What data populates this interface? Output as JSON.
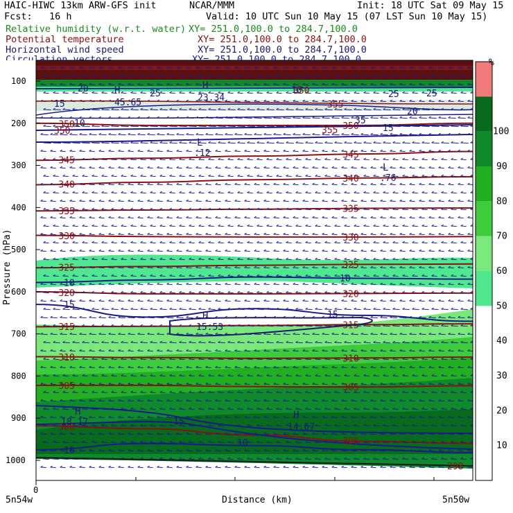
{
  "header": {
    "model": "HAIC-HIWC 13km ARW-GFS init",
    "org": "NCAR/MMM",
    "init": "Init: 18 UTC Sat 09 May 15",
    "fcst": "Fcst:   16 h",
    "valid": "Valid: 10 UTC Sun 10 May 15 (07 LST Sun 10 May 15)"
  },
  "fields": [
    {
      "name": "Relative humidity (w.r.t. water)",
      "xy": "XY= 251.0,100.0 to 284.7,100.0",
      "color": "#1a8a1a"
    },
    {
      "name": "Potential temperature",
      "xy": "XY= 251.0,100.0 to 284.7,100.0",
      "color": "#8b1010"
    },
    {
      "name": "Horizontal wind speed",
      "xy": "XY= 251.0,100.0 to 284.7,100.0",
      "color": "#1a1a6e"
    },
    {
      "name": "Circulation vectors",
      "xy": "XY= 251.0,100.0 to 284.7,100.0",
      "color": "#1a1a8e"
    }
  ],
  "chart_data": {
    "type": "cross-section",
    "ylabel": "Pressure (hPa)",
    "xlabel": "Distance (km)",
    "y_ticks": [
      100,
      200,
      300,
      400,
      500,
      600,
      700,
      800,
      900,
      1000
    ],
    "x_tick_label": "0",
    "x_left_label": "5n54w",
    "x_right_label": "5n50w",
    "colorbar": {
      "unit": "%",
      "levels": [
        10,
        20,
        30,
        40,
        50,
        60,
        70,
        80,
        90,
        100
      ],
      "colors": [
        "#ffffff",
        "#ffffff",
        "#ffffff",
        "#ffffff",
        "#ffffff",
        "#4fe88e",
        "#7ae87a",
        "#3ccc3c",
        "#22b022",
        "#0e8a2a",
        "#086a1c",
        "#f07a7a"
      ]
    },
    "theta_labels": [
      "350",
      "345",
      "340",
      "335",
      "330",
      "325",
      "320",
      "315",
      "310",
      "305",
      "300",
      "298",
      "355",
      "350"
    ],
    "speed_labels": [
      "20",
      "25",
      "25",
      "25",
      "35",
      "20",
      "15",
      "10",
      "10",
      "15",
      "15",
      "10",
      "15",
      "10"
    ],
    "extrema": [
      {
        "type": "H",
        "value": "45.65",
        "color": "navy"
      },
      {
        "type": "H",
        "value": "23.34",
        "color": "navy"
      },
      {
        "type": "L",
        "value": ".12",
        "color": "navy"
      },
      {
        "type": "L",
        "value": ".76",
        "color": "navy"
      },
      {
        "type": "H",
        "value": "15.53",
        "color": "navy"
      },
      {
        "type": "H",
        "value": "18.17",
        "color": "navy"
      },
      {
        "type": "H",
        "value": "14.67",
        "color": "navy"
      }
    ],
    "theta_contours": [
      {
        "label": "345",
        "p": [
          288,
          283,
          278,
          273,
          267
        ]
      },
      {
        "label": "340",
        "p": [
          346,
          340,
          334,
          330,
          327
        ]
      },
      {
        "label": "335",
        "p": [
          408,
          406,
          404,
          402,
          401
        ]
      },
      {
        "label": "330",
        "p": [
          466,
          469,
          470,
          470,
          469
        ]
      },
      {
        "label": "325",
        "p": [
          543,
          540,
          537,
          535,
          534
        ]
      },
      {
        "label": "320",
        "p": [
          600,
          605,
          605,
          604,
          603
        ]
      },
      {
        "label": "315",
        "p": [
          683,
          682,
          680,
          678,
          676
        ]
      },
      {
        "label": "310",
        "p": [
          754,
          756,
          758,
          757,
          755
        ]
      },
      {
        "label": "305",
        "p": [
          822,
          822,
          825,
          826,
          823
        ]
      },
      {
        "label": "300",
        "p": [
          918,
          925,
          940,
          955,
          960
        ]
      },
      {
        "label": "350",
        "p": [
          200,
          205,
          205,
          205,
          200
        ]
      }
    ],
    "speed_contours": [
      {
        "label": "10",
        "p": [
          578,
          572,
          565,
          568,
          570
        ]
      },
      {
        "label": "15",
        "p": [
          630,
          660,
          640,
          656,
          670
        ]
      },
      {
        "label": "10",
        "p": [
          975,
          960,
          965,
          975,
          982
        ]
      }
    ]
  }
}
